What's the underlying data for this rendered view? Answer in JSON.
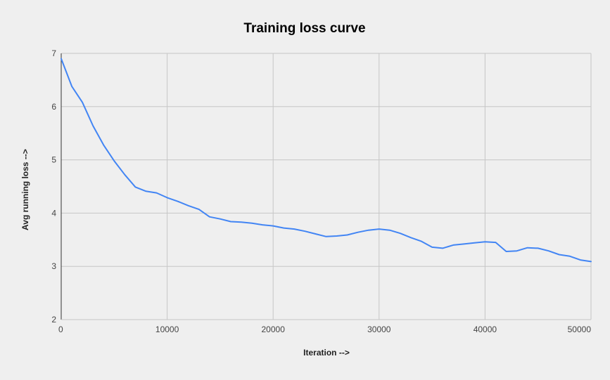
{
  "chart_data": {
    "type": "line",
    "title": "Training loss curve",
    "xlabel": "Iteration -->",
    "ylabel": "Avg running loss -->",
    "xlim": [
      0,
      50000
    ],
    "ylim": [
      2,
      7
    ],
    "x_ticks": [
      "0",
      "10000",
      "20000",
      "30000",
      "40000",
      "50000"
    ],
    "y_ticks": [
      "2",
      "3",
      "4",
      "5",
      "6",
      "7"
    ],
    "grid": true,
    "legend": "none",
    "series": [
      {
        "color": "#4285f4",
        "points": [
          [
            0,
            6.9
          ],
          [
            1000,
            6.38
          ],
          [
            2000,
            6.08
          ],
          [
            3000,
            5.64
          ],
          [
            4000,
            5.28
          ],
          [
            5000,
            4.98
          ],
          [
            6000,
            4.72
          ],
          [
            7000,
            4.49
          ],
          [
            8000,
            4.41
          ],
          [
            9000,
            4.38
          ],
          [
            10000,
            4.29
          ],
          [
            11000,
            4.22
          ],
          [
            12000,
            4.14
          ],
          [
            13000,
            4.07
          ],
          [
            14000,
            3.93
          ],
          [
            15000,
            3.89
          ],
          [
            16000,
            3.84
          ],
          [
            17000,
            3.83
          ],
          [
            18000,
            3.81
          ],
          [
            19000,
            3.78
          ],
          [
            20000,
            3.76
          ],
          [
            21000,
            3.72
          ],
          [
            22000,
            3.7
          ],
          [
            23000,
            3.66
          ],
          [
            24000,
            3.61
          ],
          [
            25000,
            3.56
          ],
          [
            26000,
            3.57
          ],
          [
            27000,
            3.59
          ],
          [
            28000,
            3.64
          ],
          [
            29000,
            3.68
          ],
          [
            30000,
            3.7
          ],
          [
            31000,
            3.68
          ],
          [
            32000,
            3.62
          ],
          [
            33000,
            3.54
          ],
          [
            34000,
            3.47
          ],
          [
            35000,
            3.36
          ],
          [
            36000,
            3.34
          ],
          [
            37000,
            3.4
          ],
          [
            38000,
            3.42
          ],
          [
            39000,
            3.44
          ],
          [
            40000,
            3.46
          ],
          [
            41000,
            3.45
          ],
          [
            42000,
            3.28
          ],
          [
            43000,
            3.29
          ],
          [
            44000,
            3.35
          ],
          [
            45000,
            3.34
          ],
          [
            46000,
            3.29
          ],
          [
            47000,
            3.22
          ],
          [
            48000,
            3.19
          ],
          [
            49000,
            3.12
          ],
          [
            50000,
            3.09
          ]
        ]
      }
    ]
  }
}
